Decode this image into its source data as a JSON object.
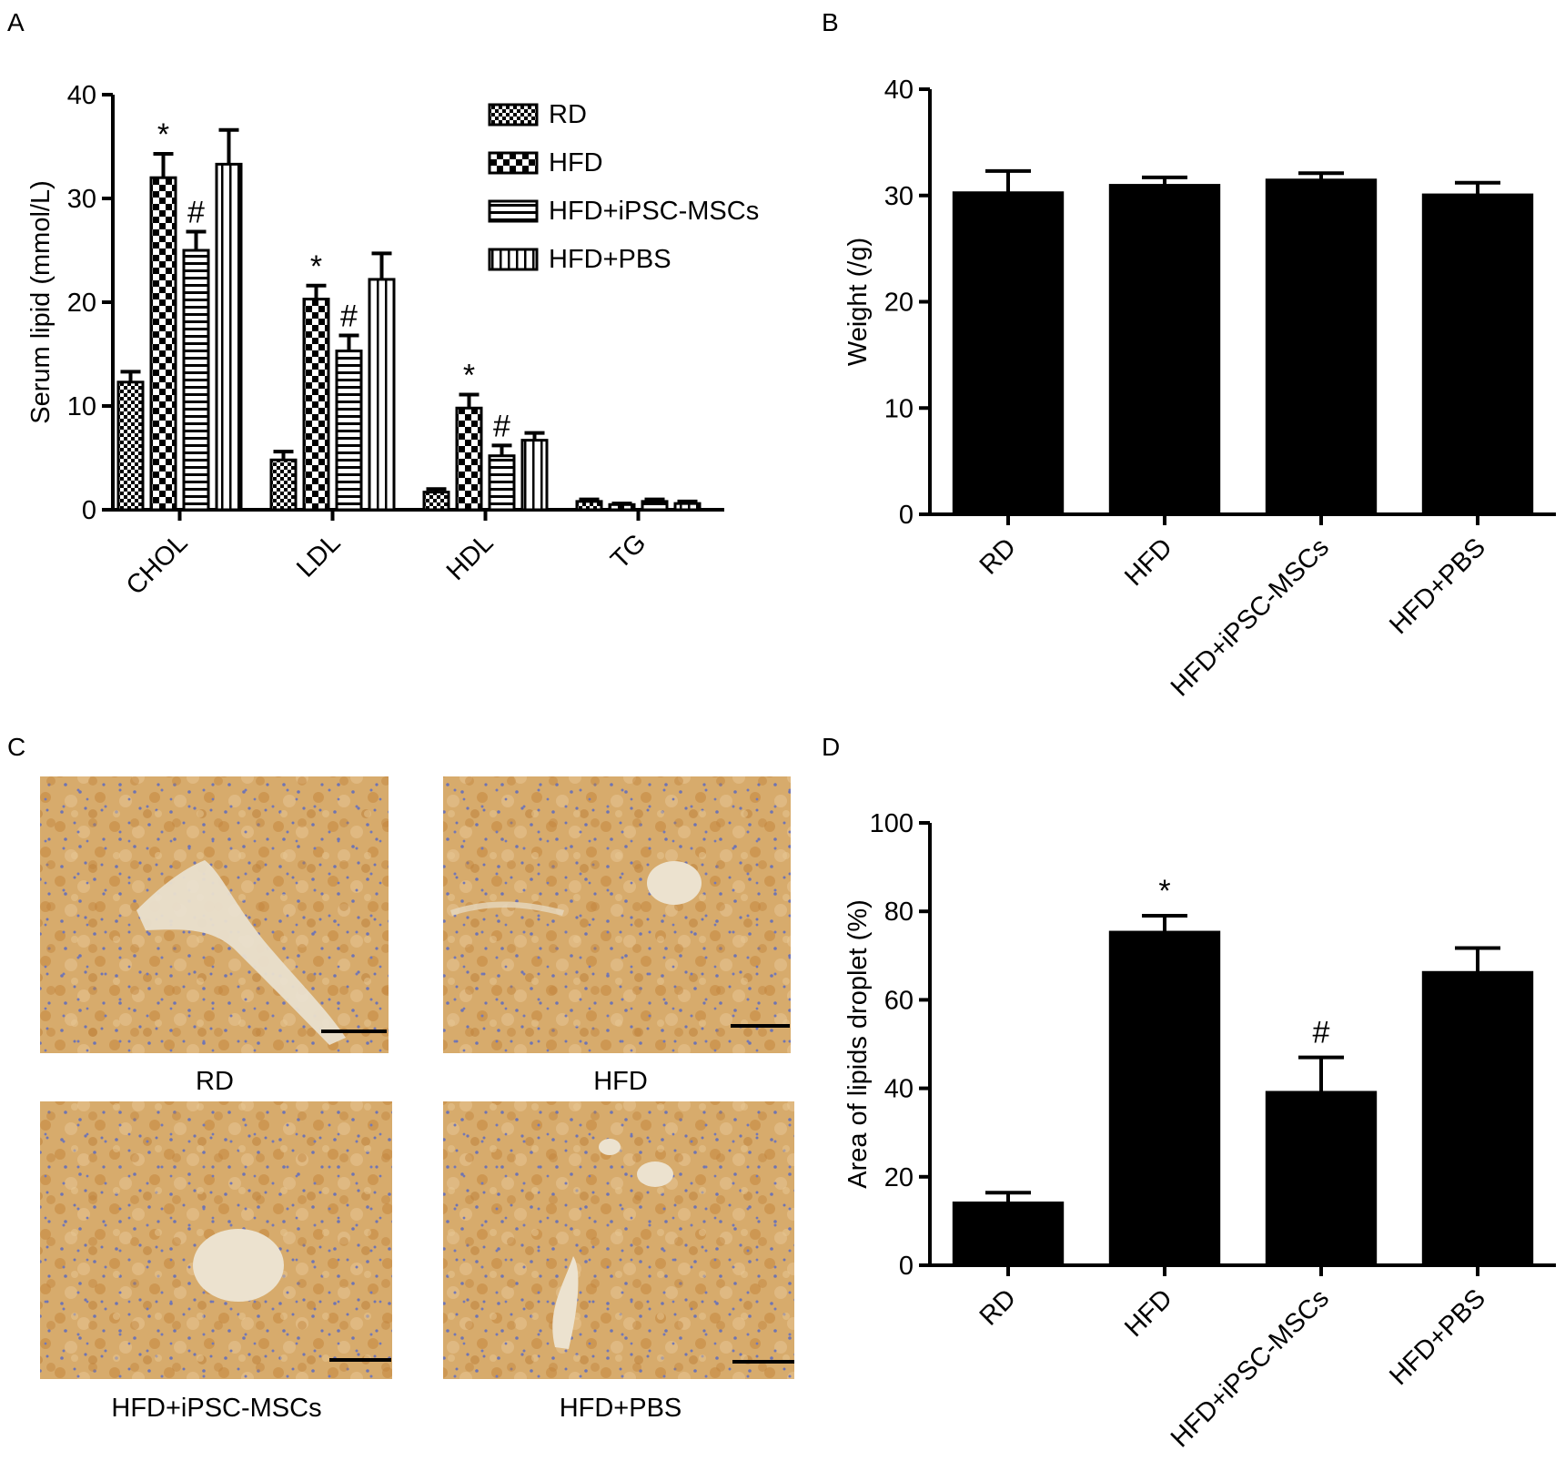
{
  "colors": {
    "bar": "#000000",
    "tissue": "#d6a866",
    "tissue_dark": "#c08a45",
    "nuclei": "#7c7fb8",
    "vessel": "#ece3d2"
  },
  "panel_labels": [
    "A",
    "B",
    "C",
    "D"
  ],
  "chart_data": [
    {
      "panel": "A",
      "type": "bar",
      "ylabel": "Serum lipid (mmol/L)",
      "xlabel": "",
      "ylim": [
        0,
        40
      ],
      "yticks": [
        0,
        10,
        20,
        30,
        40
      ],
      "categories": [
        "CHOL",
        "LDL",
        "HDL",
        "TG"
      ],
      "legend_position": "top-right",
      "series": [
        {
          "name": "RD",
          "pattern": "fine-check",
          "values": [
            12.3,
            4.8,
            1.7,
            0.8
          ],
          "errors": [
            1.0,
            0.8,
            0.3,
            0.2
          ],
          "markers": [
            "",
            "",
            "",
            ""
          ]
        },
        {
          "name": "HFD",
          "pattern": "large-check",
          "values": [
            32.0,
            20.3,
            9.8,
            0.5
          ],
          "errors": [
            2.3,
            1.3,
            1.3,
            0.1
          ],
          "markers": [
            "*",
            "*",
            "*",
            ""
          ]
        },
        {
          "name": "HFD+iPSC-MSCs",
          "pattern": "horizontal-lines",
          "values": [
            25.0,
            15.3,
            5.2,
            0.8
          ],
          "errors": [
            1.8,
            1.5,
            1.0,
            0.2
          ],
          "markers": [
            "#",
            "#",
            "#",
            ""
          ]
        },
        {
          "name": "HFD+PBS",
          "pattern": "vertical-lines",
          "values": [
            33.3,
            22.2,
            6.7,
            0.6
          ],
          "errors": [
            3.3,
            2.5,
            0.7,
            0.2
          ],
          "markers": [
            "",
            "",
            "",
            ""
          ]
        }
      ]
    },
    {
      "panel": "B",
      "type": "bar",
      "ylabel": "Weight (/g)",
      "xlabel": "",
      "ylim": [
        0,
        40
      ],
      "yticks": [
        0,
        10,
        20,
        30,
        40
      ],
      "categories": [
        "RD",
        "HFD",
        "HFD+iPSC-MSCs",
        "HFD+PBS"
      ],
      "values": [
        30.3,
        31.0,
        31.5,
        30.1
      ],
      "errors": [
        2.0,
        0.7,
        0.6,
        1.1
      ],
      "markers": [
        "",
        "",
        "",
        ""
      ]
    },
    {
      "panel": "D",
      "type": "bar",
      "ylabel": "Area of lipids droplet (%)",
      "xlabel": "",
      "ylim": [
        0,
        100
      ],
      "yticks": [
        0,
        20,
        40,
        60,
        80,
        100
      ],
      "categories": [
        "RD",
        "HFD",
        "HFD+iPSC-MSCs",
        "HFD+PBS"
      ],
      "values": [
        14.2,
        75.4,
        39.2,
        66.3
      ],
      "errors": [
        2.2,
        3.6,
        7.8,
        5.4
      ],
      "markers": [
        "",
        "*",
        "#",
        ""
      ]
    }
  ],
  "micrographs": [
    {
      "label": "RD"
    },
    {
      "label": "HFD"
    },
    {
      "label": "HFD+iPSC-MSCs"
    },
    {
      "label": "HFD+PBS"
    }
  ]
}
